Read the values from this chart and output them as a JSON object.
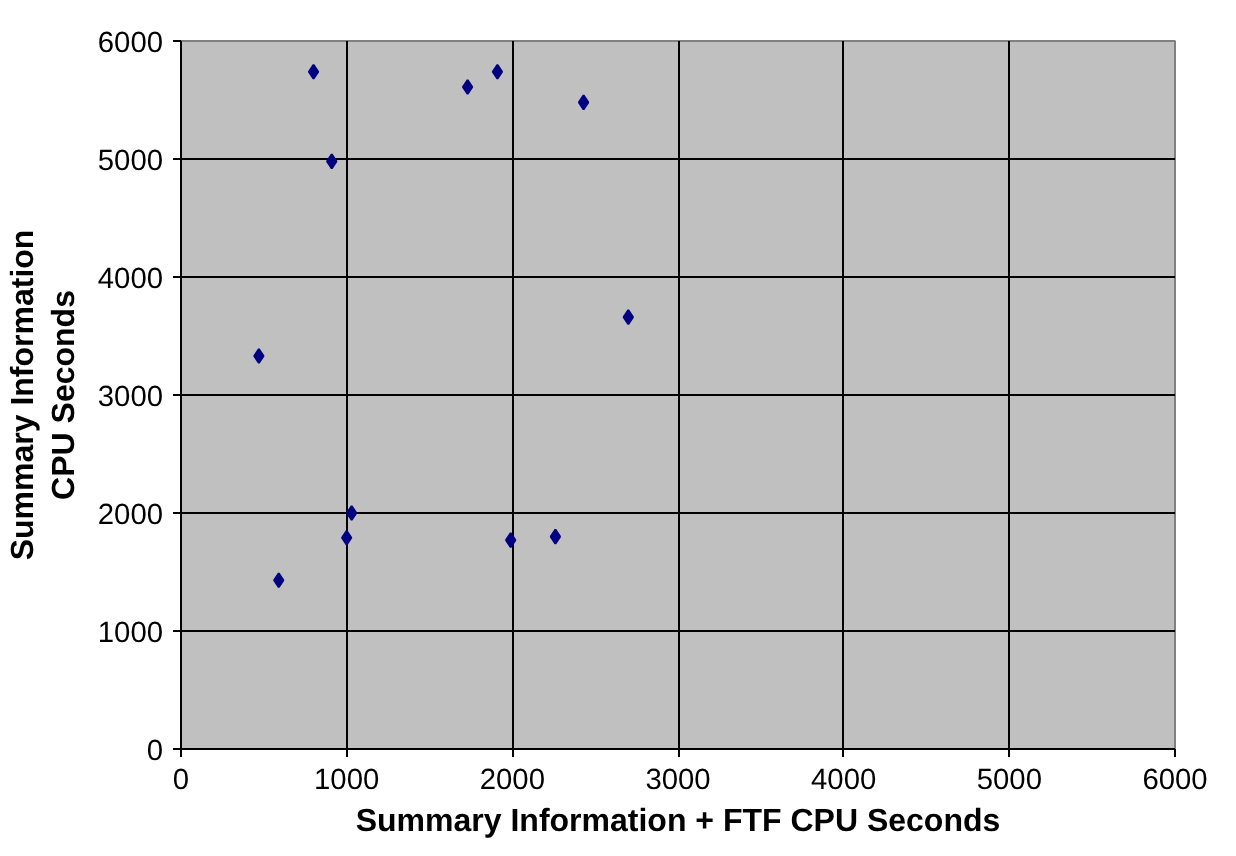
{
  "chart_data": {
    "type": "scatter",
    "xlabel": "Summary Information + FTF CPU Seconds",
    "ylabel": "Summary Information\nCPU Seconds",
    "x": [
      800,
      910,
      470,
      590,
      1000,
      1030,
      1730,
      1910,
      1990,
      2260,
      2430,
      2700
    ],
    "series": [
      {
        "color": "#000080",
        "values": [
          5740,
          4980,
          3330,
          1430,
          1790,
          2000,
          5610,
          5740,
          1770,
          1800,
          5480,
          3660
        ]
      }
    ],
    "xlim": [
      0,
      6000
    ],
    "ylim": [
      0,
      6000
    ],
    "xticks": [
      0,
      1000,
      2000,
      3000,
      4000,
      5000,
      6000
    ],
    "yticks": [
      0,
      1000,
      2000,
      3000,
      4000,
      5000,
      6000
    ],
    "grid": true,
    "marker": "diamond"
  }
}
